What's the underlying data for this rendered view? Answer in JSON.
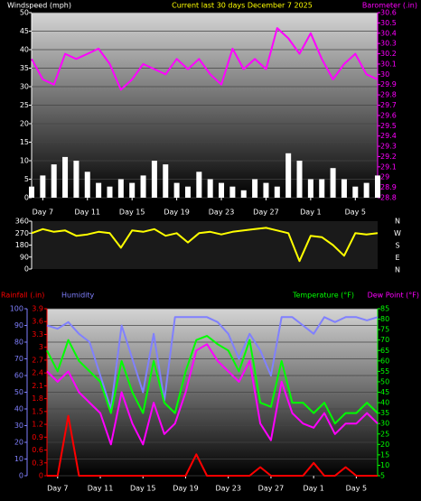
{
  "chart_data": [
    {
      "type": "bar",
      "title": "Current last 30 days December 7 2025",
      "title_color": "#ffff00",
      "x": [
        0,
        1,
        2,
        3,
        4,
        5,
        6,
        7,
        8,
        9,
        10,
        11,
        12,
        13,
        14,
        15,
        16,
        17,
        18,
        19,
        20,
        21,
        22,
        23,
        24,
        25,
        26,
        27,
        28,
        29,
        30,
        31
      ],
      "xlim": [
        0,
        31
      ],
      "xticks": [
        {
          "value": 1,
          "label": "Day 7"
        },
        {
          "value": 5,
          "label": "Day 11"
        },
        {
          "value": 9,
          "label": "Day 15"
        },
        {
          "value": 13,
          "label": "Day 19"
        },
        {
          "value": 17,
          "label": "Day 23"
        },
        {
          "value": 21,
          "label": "Day 27"
        },
        {
          "value": 25,
          "label": "Day 1"
        },
        {
          "value": 29,
          "label": "Day 5"
        }
      ],
      "ylim": [
        0,
        50
      ],
      "yticks": [
        0,
        5,
        10,
        15,
        20,
        25,
        30,
        35,
        40,
        45,
        50
      ],
      "ytick_color": "#ffffff",
      "y2lim": [
        28.8,
        30.6
      ],
      "y2ticks": [
        28.8,
        28.9,
        29,
        29.1,
        29.2,
        29.3,
        29.4,
        29.5,
        29.6,
        29.7,
        29.8,
        29.9,
        30,
        30.1,
        30.2,
        30.3,
        30.4,
        30.5,
        30.6
      ],
      "y2tick_color": "#ff00ff",
      "grid": true,
      "series": [
        {
          "name": "Windspeed (mph)",
          "type": "bar",
          "axis": "y",
          "color": "#ffffff",
          "values": [
            3,
            6,
            9,
            11,
            10,
            7,
            4,
            3,
            5,
            4,
            6,
            10,
            9,
            4,
            3,
            7,
            5,
            4,
            3,
            2,
            5,
            4,
            3,
            12,
            10,
            5,
            5,
            8,
            5,
            3,
            4,
            6
          ]
        },
        {
          "name": "Barometer (.in)",
          "type": "line",
          "axis": "y2",
          "color": "#ff00ff",
          "values": [
            30.15,
            29.95,
            29.9,
            30.2,
            30.15,
            30.2,
            30.25,
            30.1,
            29.85,
            29.95,
            30.1,
            30.05,
            30.0,
            30.15,
            30.05,
            30.15,
            30.0,
            29.9,
            30.25,
            30.05,
            30.15,
            30.05,
            30.45,
            30.35,
            30.2,
            30.4,
            30.15,
            29.95,
            30.1,
            30.2,
            30.0,
            29.95
          ]
        }
      ]
    },
    {
      "type": "line",
      "x": [
        0,
        1,
        2,
        3,
        4,
        5,
        6,
        7,
        8,
        9,
        10,
        11,
        12,
        13,
        14,
        15,
        16,
        17,
        18,
        19,
        20,
        21,
        22,
        23,
        24,
        25,
        26,
        27,
        28,
        29,
        30,
        31
      ],
      "xlim": [
        0,
        31
      ],
      "ylim": [
        0,
        360
      ],
      "yticks": [
        0,
        90,
        180,
        270,
        360
      ],
      "ytick_color": "#ffffff",
      "compass": [
        "N",
        "W",
        "S",
        "E",
        "N"
      ],
      "series": [
        {
          "type": "line",
          "axis": "y",
          "color": "#ffff00",
          "values": [
            270,
            300,
            280,
            290,
            250,
            260,
            280,
            270,
            160,
            290,
            280,
            300,
            250,
            270,
            200,
            270,
            280,
            260,
            280,
            290,
            300,
            310,
            290,
            270,
            60,
            250,
            240,
            180,
            100,
            270,
            260,
            270
          ]
        }
      ]
    },
    {
      "type": "line",
      "x": [
        0,
        1,
        2,
        3,
        4,
        5,
        6,
        7,
        8,
        9,
        10,
        11,
        12,
        13,
        14,
        15,
        16,
        17,
        18,
        19,
        20,
        21,
        22,
        23,
        24,
        25,
        26,
        27,
        28,
        29,
        30,
        31
      ],
      "xlim": [
        0,
        31
      ],
      "xticks": [
        {
          "value": 1,
          "label": "Day 7"
        },
        {
          "value": 5,
          "label": "Day 11"
        },
        {
          "value": 9,
          "label": "Day 15"
        },
        {
          "value": 13,
          "label": "Day 19"
        },
        {
          "value": 17,
          "label": "Day 23"
        },
        {
          "value": 21,
          "label": "Day 27"
        },
        {
          "value": 25,
          "label": "Day 1"
        },
        {
          "value": 29,
          "label": "Day 5"
        }
      ],
      "ylim": [
        0,
        100
      ],
      "yticks": [
        0,
        10,
        20,
        30,
        40,
        50,
        60,
        70,
        80,
        90,
        100
      ],
      "ytick_color": "#8080ff",
      "y2lim": [
        5,
        85
      ],
      "y2ticks": [
        5,
        10,
        15,
        20,
        25,
        30,
        35,
        40,
        45,
        50,
        55,
        60,
        65,
        70,
        75,
        80,
        85
      ],
      "y2tick_color": "#00ff00",
      "y3lim": [
        0,
        3.9
      ],
      "y3ticks": [
        0,
        0.3,
        0.6,
        0.9,
        1.2,
        1.5,
        1.8,
        2.1,
        2.4,
        2.7,
        3,
        3.3,
        3.6,
        3.9
      ],
      "y3tick_color": "#ff0000",
      "grid": true,
      "series": [
        {
          "name": "Rainfall (.in)",
          "type": "line",
          "axis": "y3",
          "color": "#ff0000",
          "values": [
            0,
            0,
            1.4,
            0,
            0,
            0,
            0,
            0,
            0,
            0,
            0,
            0,
            0,
            0,
            0.5,
            0,
            0,
            0,
            0,
            0,
            0.2,
            0,
            0,
            0,
            0,
            0.3,
            0,
            0,
            0.2,
            0,
            0,
            0
          ]
        },
        {
          "name": "Humidity",
          "type": "line",
          "axis": "y",
          "color": "#8080ff",
          "values": [
            90,
            88,
            92,
            85,
            80,
            60,
            40,
            90,
            70,
            50,
            85,
            45,
            95,
            95,
            95,
            95,
            92,
            85,
            70,
            85,
            75,
            60,
            95,
            95,
            90,
            85,
            95,
            92,
            95,
            95,
            93,
            95
          ]
        },
        {
          "name": "Temperature (°F)",
          "type": "line",
          "axis": "y2",
          "color": "#00ff00",
          "values": [
            65,
            55,
            70,
            60,
            55,
            50,
            35,
            60,
            45,
            35,
            60,
            40,
            35,
            55,
            70,
            72,
            68,
            65,
            55,
            70,
            40,
            38,
            60,
            40,
            40,
            35,
            40,
            30,
            35,
            35,
            40,
            35
          ]
        },
        {
          "name": "Dew Point (°F)",
          "type": "line",
          "axis": "y2",
          "color": "#ff00ff",
          "values": [
            55,
            50,
            55,
            45,
            40,
            35,
            20,
            45,
            30,
            20,
            40,
            25,
            30,
            45,
            65,
            68,
            60,
            55,
            50,
            60,
            30,
            22,
            50,
            35,
            30,
            28,
            35,
            25,
            30,
            30,
            35,
            30
          ]
        }
      ]
    }
  ]
}
